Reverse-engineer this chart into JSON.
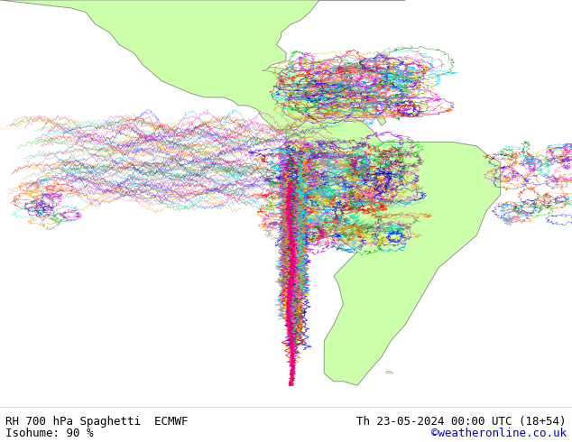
{
  "title_left": "RH 700 hPa Spaghetti  ECMWF",
  "title_right": "Th 23-05-2024 00:00 UTC (18+54)",
  "subtitle_left": "Isohume: 90 %",
  "subtitle_right": "©weatheronline.co.uk",
  "ocean_color": "#e0e0e0",
  "land_color": "#ccffaa",
  "coast_color": "#888888",
  "text_color": "#000000",
  "link_color": "#0000cc",
  "footer_bg": "#ffffff",
  "fig_width": 6.34,
  "fig_height": 4.9,
  "dpi": 100,
  "xlim": [
    -140,
    -20
  ],
  "ylim": [
    -60,
    40
  ],
  "font_size": 9.0
}
